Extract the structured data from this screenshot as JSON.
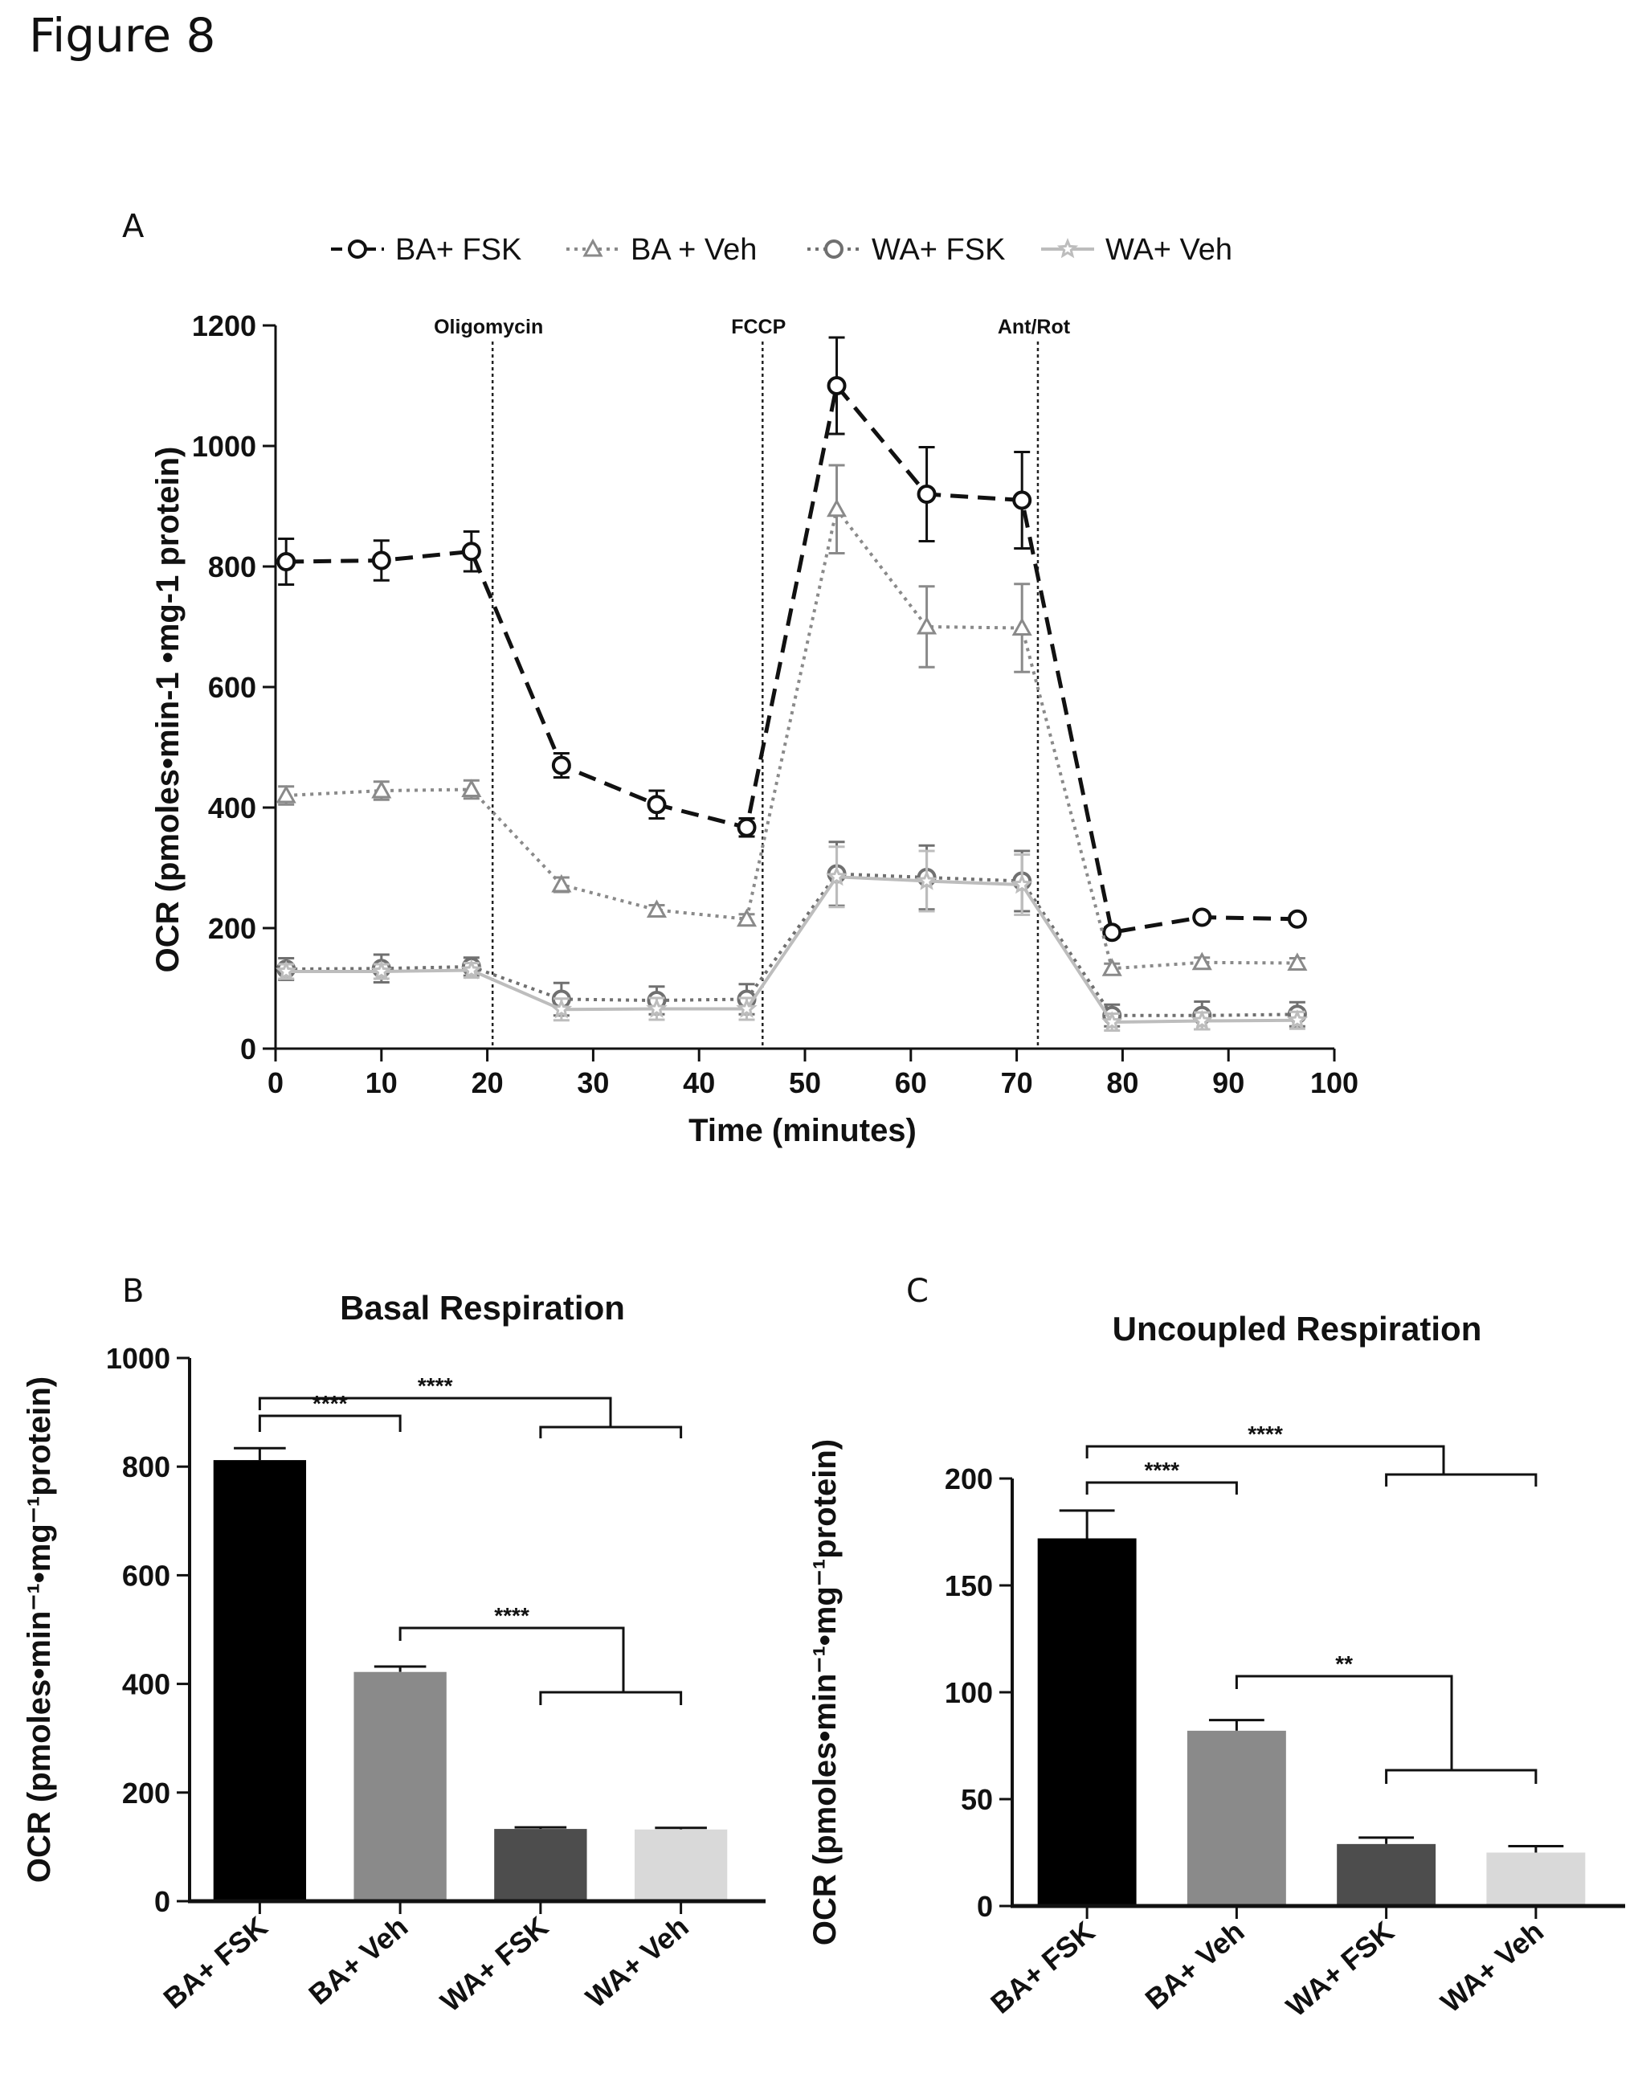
{
  "figure_title": "Figure 8",
  "panel_letters": {
    "a": "A",
    "b": "B",
    "c": "C"
  },
  "chart_data": [
    {
      "id": "A",
      "type": "line",
      "xlabel": "Time (minutes)",
      "ylabel": "OCR (pmoles•min-1 •mg-1 protein)",
      "xlim": [
        0,
        100
      ],
      "ylim": [
        0,
        1200
      ],
      "xticks": [
        0,
        10,
        20,
        30,
        40,
        50,
        60,
        70,
        80,
        90,
        100
      ],
      "yticks": [
        0,
        200,
        400,
        600,
        800,
        1000,
        1200
      ],
      "legend_position": "top",
      "events": [
        {
          "label": "Oligomycin",
          "x": 20.5
        },
        {
          "label": "FCCP",
          "x": 46
        },
        {
          "label": "Ant/Rot",
          "x": 72
        }
      ],
      "x": [
        1,
        10,
        18.5,
        27,
        36,
        44.5,
        53,
        61.5,
        70.5,
        79,
        87.5,
        96.5
      ],
      "series": [
        {
          "name": "BA+ FSK",
          "color": "#111111",
          "marker": "circle",
          "line": "dashed",
          "values": [
            808,
            810,
            825,
            470,
            405,
            367,
            1100,
            920,
            910,
            193,
            218,
            215
          ],
          "errors": [
            38,
            33,
            33,
            20,
            23,
            15,
            80,
            78,
            80,
            8,
            6,
            5
          ]
        },
        {
          "name": "BA + Veh",
          "color": "#8a8a8a",
          "marker": "triangle",
          "line": "dotted",
          "values": [
            420,
            428,
            430,
            272,
            230,
            215,
            895,
            700,
            698,
            133,
            143,
            142
          ],
          "errors": [
            15,
            15,
            15,
            12,
            8,
            8,
            73,
            67,
            73,
            8,
            8,
            8
          ]
        },
        {
          "name": "WA+ FSK",
          "color": "#707070",
          "marker": "circle",
          "line": "dotted",
          "values": [
            132,
            133,
            136,
            82,
            80,
            82,
            290,
            284,
            278,
            55,
            55,
            57
          ],
          "errors": [
            18,
            23,
            15,
            27,
            23,
            25,
            53,
            53,
            50,
            18,
            23,
            20
          ]
        },
        {
          "name": "WA+ Veh",
          "color": "#bdbdbd",
          "marker": "star",
          "line": "solid",
          "values": [
            128,
            128,
            130,
            65,
            66,
            66,
            285,
            278,
            272,
            44,
            46,
            47
          ],
          "errors": [
            12,
            12,
            12,
            18,
            18,
            18,
            50,
            50,
            50,
            14,
            14,
            14
          ]
        }
      ]
    },
    {
      "id": "B",
      "type": "bar",
      "title": "Basal Respiration",
      "ylabel": "OCR (pmoles•min⁻¹•mg⁻¹protein)",
      "categories": [
        "BA+ FSK",
        "BA+ Veh",
        "WA+ FSK",
        "WA+ Veh"
      ],
      "values": [
        812,
        422,
        133,
        132
      ],
      "errors": [
        22,
        10,
        3,
        3
      ],
      "colors": [
        "#000000",
        "#8a8a8a",
        "#4d4d4d",
        "#d9d9d9"
      ],
      "ylim": [
        0,
        1000
      ],
      "yticks": [
        0,
        200,
        400,
        600,
        800,
        1000
      ],
      "significance": [
        {
          "label": "****",
          "from": 0,
          "to": [
            1
          ]
        },
        {
          "label": "****",
          "from": 0,
          "to": [
            2,
            3
          ]
        },
        {
          "label": "****",
          "from": 1,
          "to": [
            2,
            3
          ]
        }
      ]
    },
    {
      "id": "C",
      "type": "bar",
      "title": "Uncoupled Respiration",
      "ylabel": "OCR (pmoles•min⁻¹•mg⁻¹protein)",
      "categories": [
        "BA+ FSK",
        "BA+ Veh",
        "WA+ FSK",
        "WA+ Veh"
      ],
      "values": [
        172,
        82,
        29,
        25
      ],
      "errors": [
        13,
        5,
        3,
        3
      ],
      "colors": [
        "#000000",
        "#8a8a8a",
        "#4d4d4d",
        "#d9d9d9"
      ],
      "ylim": [
        0,
        200
      ],
      "yticks": [
        0,
        50,
        100,
        150,
        200
      ],
      "significance": [
        {
          "label": "****",
          "from": 0,
          "to": [
            1
          ]
        },
        {
          "label": "****",
          "from": 0,
          "to": [
            2,
            3
          ]
        },
        {
          "label": "**",
          "from": 1,
          "to": [
            2,
            3
          ]
        }
      ]
    }
  ]
}
